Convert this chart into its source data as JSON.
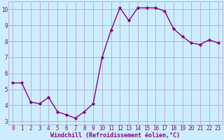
{
  "x": [
    0,
    1,
    2,
    3,
    4,
    5,
    6,
    7,
    8,
    9,
    10,
    11,
    12,
    13,
    14,
    15,
    16,
    17,
    18,
    19,
    20,
    21,
    22,
    23
  ],
  "y": [
    5.4,
    5.4,
    4.2,
    4.1,
    4.5,
    3.6,
    3.4,
    3.2,
    3.6,
    4.1,
    7.0,
    8.7,
    10.1,
    9.3,
    10.1,
    10.1,
    10.1,
    9.9,
    8.8,
    8.3,
    7.9,
    7.8,
    8.1,
    7.9
  ],
  "line_color": "#880088",
  "marker": "D",
  "marker_size": 2.2,
  "background_color": "#cceeff",
  "grid_color": "#bb99bb",
  "xlabel": "Windchill (Refroidissement éolien,°C)",
  "xlabel_color": "#880088",
  "tick_color": "#880088",
  "ylim_min": 2.8,
  "ylim_max": 10.5,
  "xlim_min": -0.5,
  "xlim_max": 23.5,
  "yticks": [
    3,
    4,
    5,
    6,
    7,
    8,
    9,
    10
  ],
  "xticks": [
    0,
    1,
    2,
    3,
    4,
    5,
    6,
    7,
    8,
    9,
    10,
    11,
    12,
    13,
    14,
    15,
    16,
    17,
    18,
    19,
    20,
    21,
    22,
    23
  ],
  "line_width": 1.0,
  "tick_fontsize": 5.5,
  "xlabel_fontsize": 6.0
}
